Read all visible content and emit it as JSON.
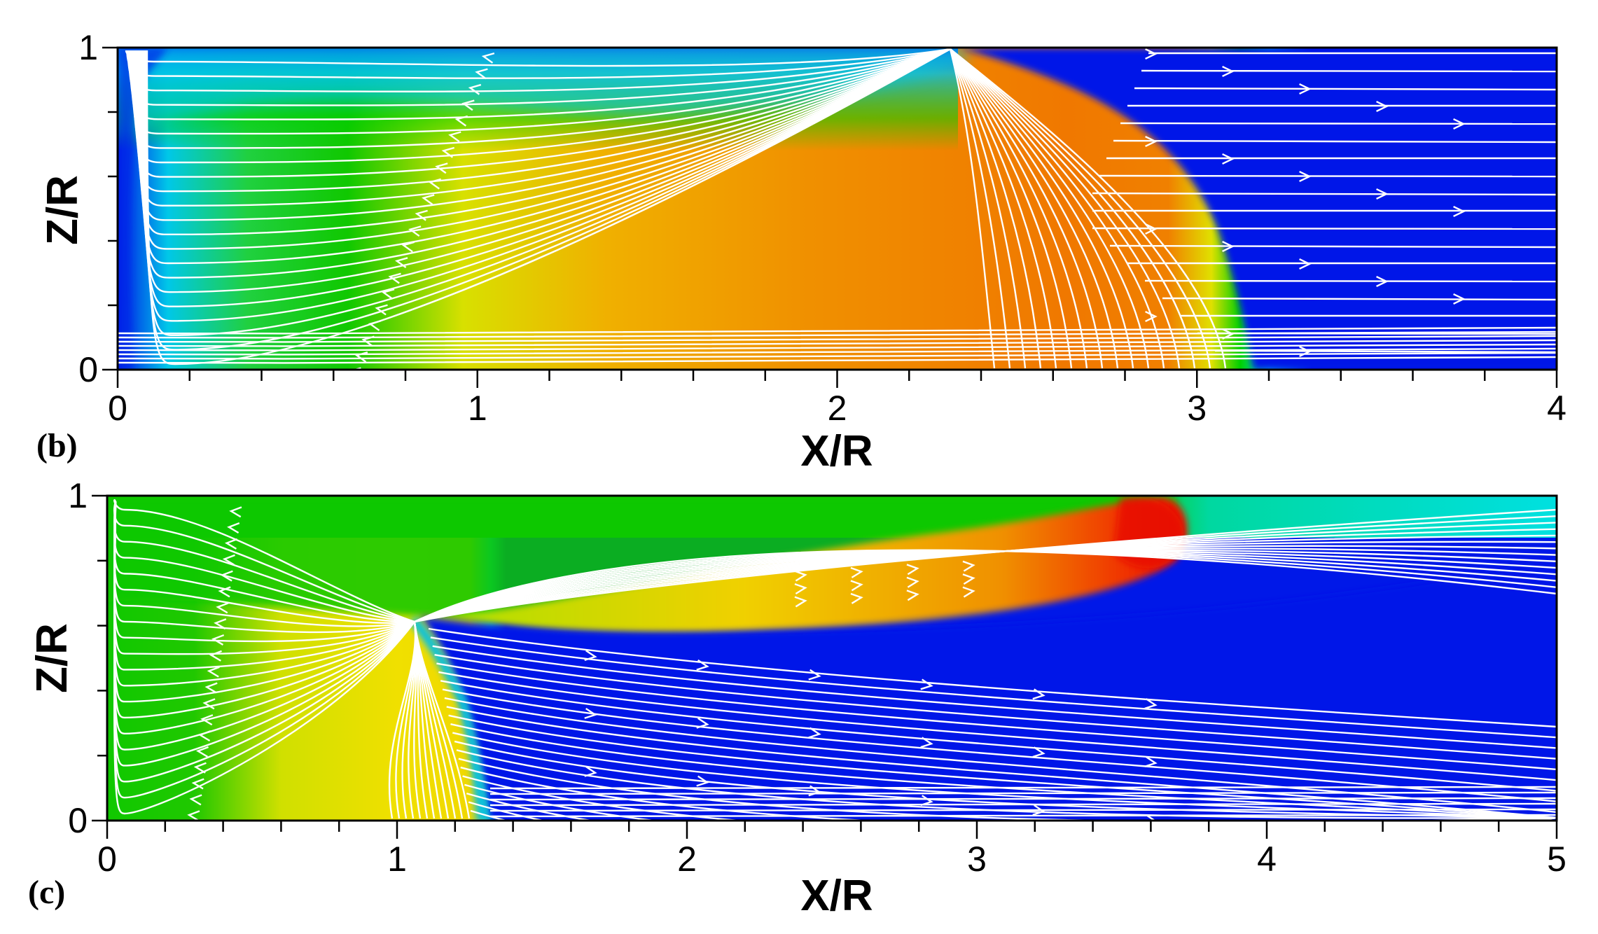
{
  "panels": [
    {
      "id": "b",
      "tag": "(b)",
      "xlabel": "X/R",
      "ylabel": "Z/R",
      "x_ticks": [
        "0",
        "1",
        "2",
        "3",
        "4"
      ],
      "y_ticks": [
        "0",
        "1"
      ],
      "x_range": [
        0,
        4
      ],
      "y_range": [
        0,
        1
      ]
    },
    {
      "id": "c",
      "tag": "(c)",
      "xlabel": "X/R",
      "ylabel": "Z/R",
      "x_ticks": [
        "0",
        "1",
        "2",
        "3",
        "4",
        "5"
      ],
      "y_ticks": [
        "0",
        "1"
      ],
      "x_range": [
        0,
        5
      ],
      "y_range": [
        0,
        1
      ]
    }
  ],
  "colors": {
    "field_low": "#0018e8",
    "field_mid_low": "#00e8e8",
    "field_mid": "#00d000",
    "field_mid_high": "#f0f000",
    "field_high": "#f08000",
    "field_max": "#e81000",
    "streamline": "#ffffff"
  }
}
